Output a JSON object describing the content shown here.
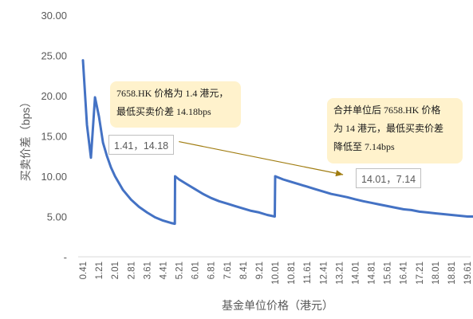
{
  "chart_data": {
    "type": "line",
    "xlabel": "基金单位价格（港元）",
    "ylabel": "买卖价差（bps）",
    "ylim": [
      0,
      30
    ],
    "y_ticks": [
      "-",
      "5.00",
      "10.00",
      "15.00",
      "20.00",
      "25.00",
      "30.00"
    ],
    "x_tick_labels": [
      "0.41",
      "0.81",
      "1.21",
      "1.61",
      "2.01",
      "2.41",
      "2.81",
      "3.21",
      "3.61",
      "4.01",
      "4.41",
      "4.81",
      "5.21",
      "5.61",
      "6.01",
      "6.41",
      "6.81",
      "7.21",
      "7.61",
      "8.01",
      "8.41",
      "8.81",
      "9.21",
      "9.61",
      "10.01",
      "10.41",
      "10.81",
      "11.21",
      "11.61",
      "12.01",
      "12.41",
      "12.81",
      "13.21",
      "13.61",
      "14.01",
      "14.41",
      "14.81",
      "15.21",
      "15.61",
      "16.01",
      "16.41",
      "16.81",
      "17.21",
      "17.61",
      "18.01",
      "18.41",
      "18.81",
      "19.21",
      "19.61"
    ],
    "x_tick_shown": [
      "0.41",
      "1.21",
      "2.01",
      "2.81",
      "3.61",
      "4.41",
      "5.21",
      "6.01",
      "6.81",
      "7.61",
      "8.41",
      "9.21",
      "10.01",
      "10.81",
      "11.61",
      "12.41",
      "13.21",
      "14.01",
      "14.81",
      "15.61",
      "16.41",
      "17.21",
      "18.01",
      "18.81",
      "19.61"
    ],
    "grid": false,
    "series": [
      {
        "color": "#4472c4",
        "x": [
          0.41,
          0.61,
          0.81,
          1.01,
          1.21,
          1.41,
          1.61,
          1.81,
          2.01,
          2.41,
          2.81,
          3.21,
          3.61,
          4.01,
          4.41,
          4.81,
          5.0,
          5.01,
          5.21,
          5.61,
          6.01,
          6.41,
          6.81,
          7.21,
          7.61,
          8.01,
          8.41,
          8.81,
          9.21,
          9.61,
          9.99,
          10.01,
          10.41,
          10.81,
          11.21,
          11.61,
          12.01,
          12.41,
          12.81,
          13.21,
          13.61,
          14.01,
          14.41,
          14.81,
          15.21,
          15.61,
          16.01,
          16.41,
          16.81,
          17.21,
          17.61,
          18.01,
          18.41,
          18.81,
          19.21,
          19.61,
          19.99
        ],
        "y": [
          24.4,
          16.4,
          12.3,
          19.8,
          17.4,
          14.18,
          12.5,
          11.1,
          10.0,
          8.3,
          7.1,
          6.2,
          5.5,
          4.9,
          4.5,
          4.2,
          4.1,
          10.0,
          9.6,
          9.0,
          8.4,
          7.8,
          7.3,
          6.9,
          6.6,
          6.3,
          6.0,
          5.7,
          5.5,
          5.2,
          5.0,
          10.0,
          9.6,
          9.3,
          9.0,
          8.7,
          8.4,
          8.1,
          7.8,
          7.6,
          7.4,
          7.14,
          6.9,
          6.7,
          6.5,
          6.3,
          6.1,
          5.9,
          5.8,
          5.6,
          5.5,
          5.4,
          5.3,
          5.2,
          5.1,
          5.0,
          5.0
        ]
      }
    ],
    "annotations": [
      {
        "lines": [
          "7658.HK 价格为 1.4 港元，",
          "最低买卖价差 14.18bps"
        ]
      },
      {
        "lines": [
          "合并单位后 7658.HK 价格",
          "为 14 港元，最低买卖价差",
          "降低至 7.14bps"
        ]
      }
    ],
    "point_labels": [
      {
        "text": "1.41，14.18",
        "x": 1.41,
        "y": 14.18
      },
      {
        "text": "14.01，7.14",
        "x": 14.01,
        "y": 7.14
      }
    ],
    "arrow": {
      "from": [
        5.2,
        14.3
      ],
      "to": [
        13.4,
        10.2
      ],
      "color": "#a07c10"
    }
  }
}
